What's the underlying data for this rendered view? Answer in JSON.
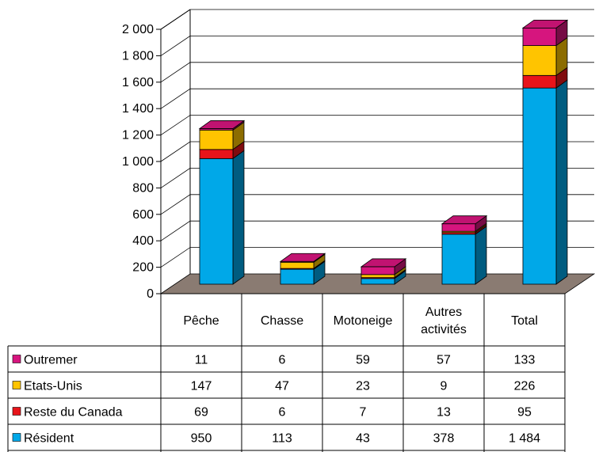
{
  "chart_data": {
    "type": "bar",
    "stacked": true,
    "three_d": true,
    "categories": [
      "Pêche",
      "Chasse",
      "Motoneige",
      "Autres activités",
      "Total"
    ],
    "category_lines": [
      [
        "Pêche"
      ],
      [
        "Chasse"
      ],
      [
        "Motoneige"
      ],
      [
        "Autres",
        "activités"
      ],
      [
        "Total"
      ]
    ],
    "series": [
      {
        "name": "Résident",
        "values": [
          950,
          113,
          43,
          378,
          1484
        ]
      },
      {
        "name": "Reste du Canada",
        "values": [
          69,
          6,
          7,
          13,
          95
        ]
      },
      {
        "name": "Etats-Unis",
        "values": [
          147,
          47,
          23,
          9,
          226
        ]
      },
      {
        "name": "Outremer",
        "values": [
          11,
          6,
          59,
          57,
          133
        ]
      }
    ],
    "value_labels": [
      [
        "950",
        "113",
        "43",
        "378",
        "1 484"
      ],
      [
        "69",
        "6",
        "7",
        "13",
        "95"
      ],
      [
        "147",
        "47",
        "23",
        "9",
        "226"
      ],
      [
        "11",
        "6",
        "59",
        "57",
        "133"
      ]
    ],
    "table_order": [
      "Outremer",
      "Etats-Unis",
      "Reste du Canada",
      "Résident"
    ],
    "ylim": [
      0,
      2000
    ],
    "yticks": [
      0,
      200,
      400,
      600,
      800,
      1000,
      1200,
      1400,
      1600,
      1800,
      2000
    ],
    "ytick_labels": [
      "0",
      "200",
      "400",
      "600",
      "800",
      "1 000",
      "1 200",
      "1 400",
      "1 600",
      "1 800",
      "2 000"
    ],
    "grid": true,
    "legend": "data-table",
    "colors": {
      "Résident": "#00a8e8",
      "Reste du Canada": "#e8141a",
      "Etats-Unis": "#ffc400",
      "Outremer": "#d6157e",
      "floor": "#8a7b72",
      "grid": "#000000"
    }
  }
}
